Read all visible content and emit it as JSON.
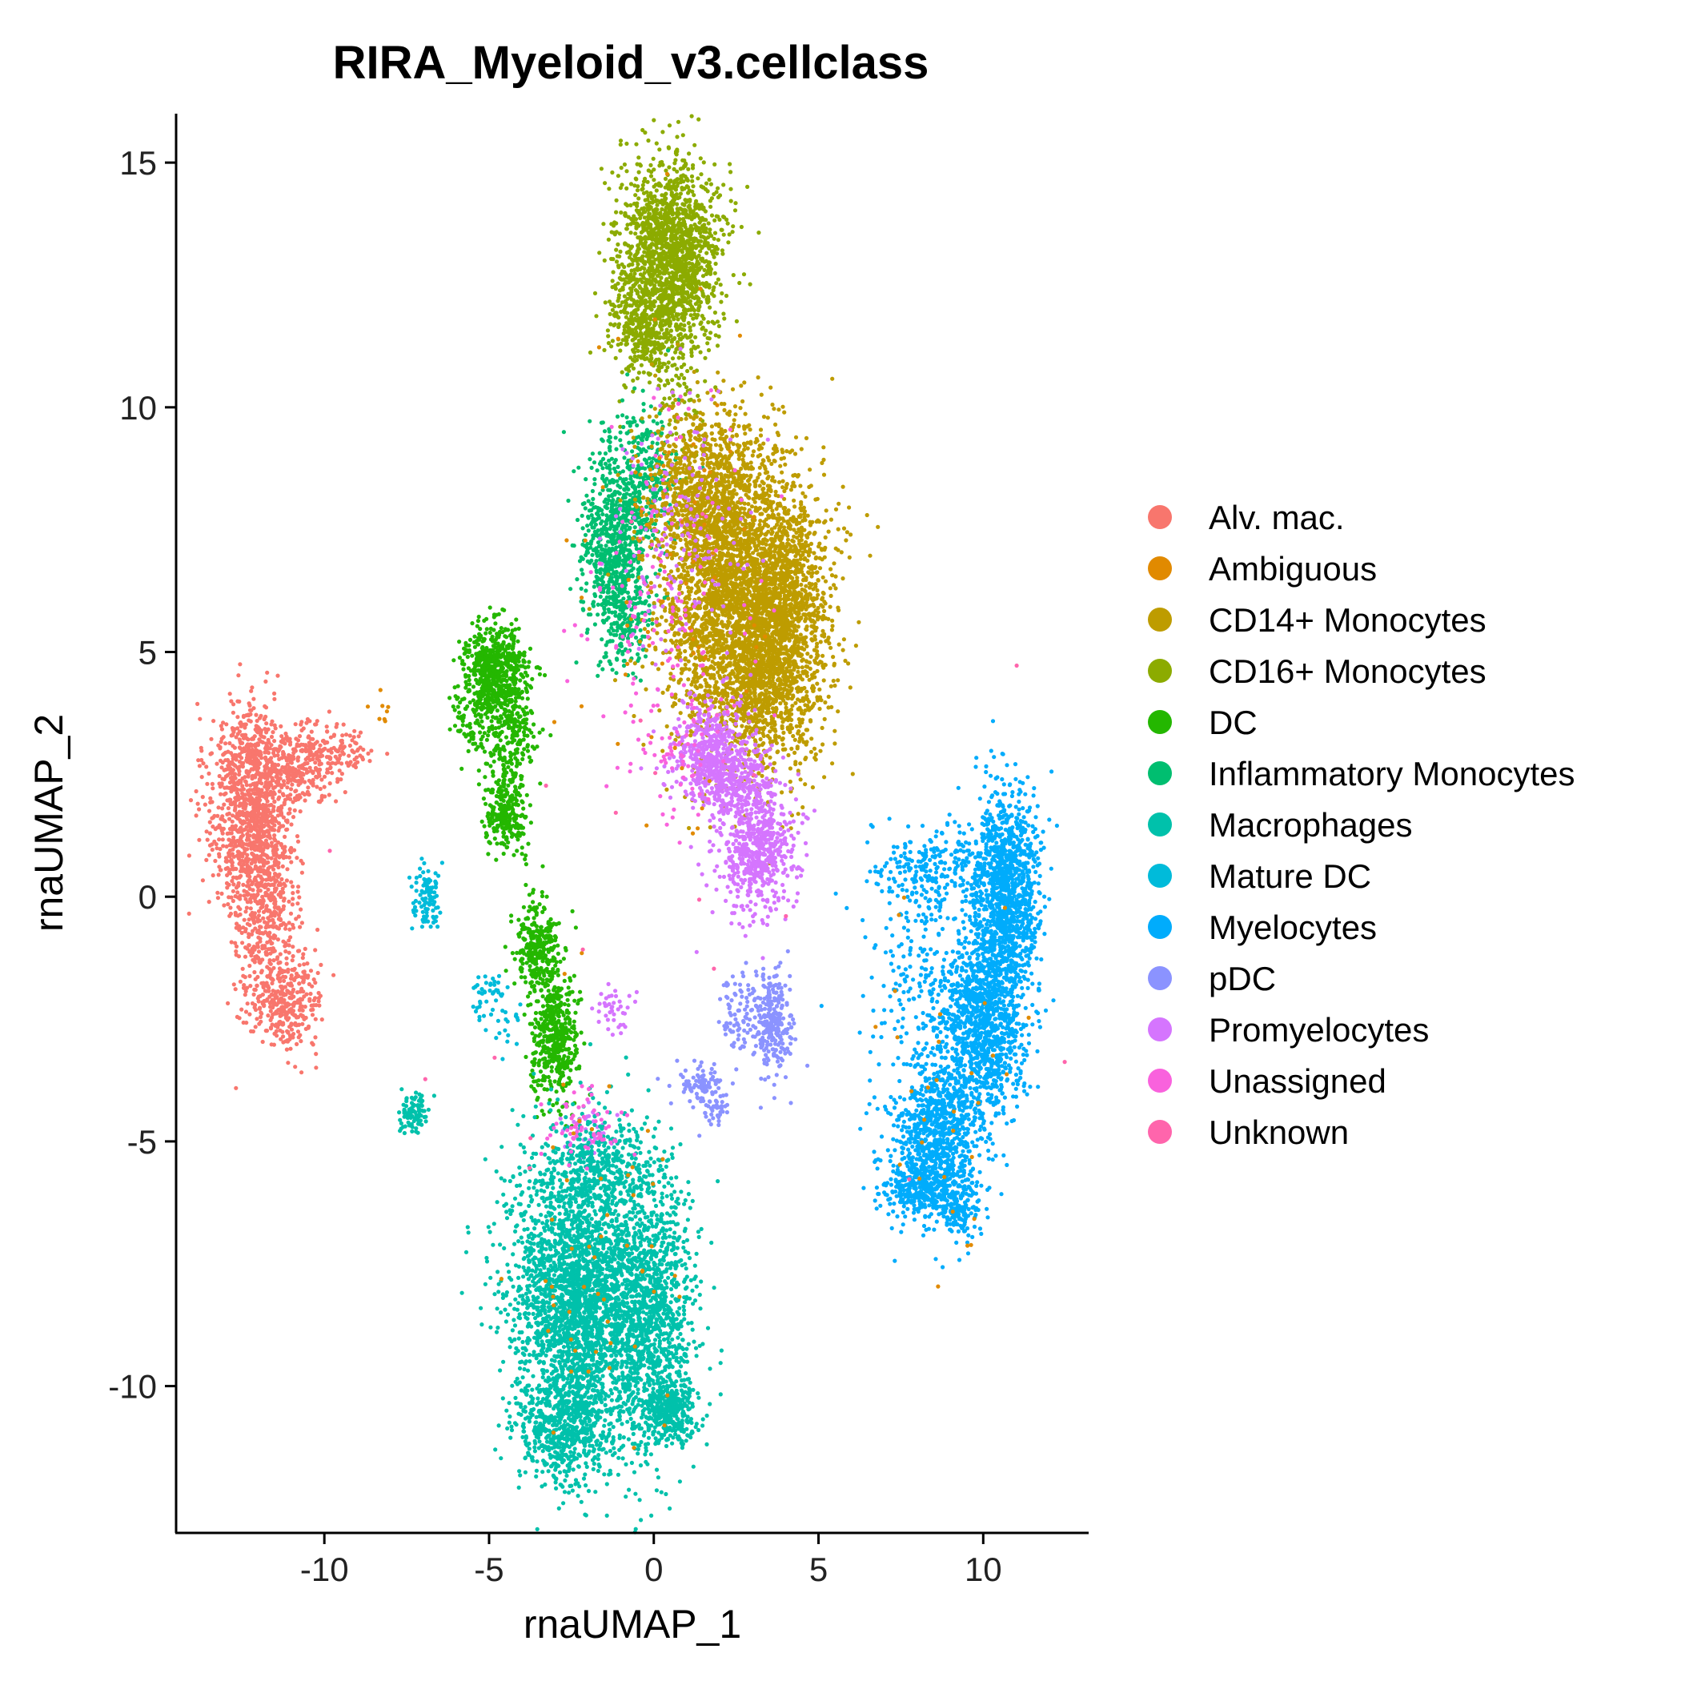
{
  "chart_data": {
    "type": "scatter",
    "title": "RIRA_Myeloid_v3.cellclass",
    "xlabel": "rnaUMAP_1",
    "ylabel": "rnaUMAP_2",
    "xlim": [
      -14.5,
      13.2
    ],
    "ylim": [
      -13,
      16
    ],
    "xticks": [
      -10,
      -5,
      0,
      5,
      10
    ],
    "xtick_labels": [
      "-10",
      "-5",
      "0",
      "5",
      "10"
    ],
    "yticks": [
      -10,
      -5,
      0,
      5,
      10,
      15
    ],
    "ytick_labels": [
      "-10",
      "-5",
      "0",
      "5",
      "10",
      "15"
    ],
    "grid": false,
    "legend_position": "right",
    "legend": [
      {
        "label": "Alv. mac.",
        "color": "#F8766D"
      },
      {
        "label": "Ambiguous",
        "color": "#E18A00"
      },
      {
        "label": "CD14+ Monocytes",
        "color": "#BE9C00"
      },
      {
        "label": "CD16+ Monocytes",
        "color": "#8CAB00"
      },
      {
        "label": "DC",
        "color": "#24B700"
      },
      {
        "label": "Inflammatory Monocytes",
        "color": "#00BE70"
      },
      {
        "label": "Macrophages",
        "color": "#00C1AB"
      },
      {
        "label": "Mature DC",
        "color": "#00BBDA"
      },
      {
        "label": "Myelocytes",
        "color": "#00ACFC"
      },
      {
        "label": "pDC",
        "color": "#8B93FF"
      },
      {
        "label": "Promyelocytes",
        "color": "#D575FE"
      },
      {
        "label": "Unassigned",
        "color": "#F962DD"
      },
      {
        "label": "Unknown",
        "color": "#FF65AC"
      }
    ],
    "series": [
      {
        "name": "Alv. mac.",
        "color": "#F8766D",
        "clusters": [
          {
            "cx": -12.3,
            "cy": 1.8,
            "sx": 0.6,
            "sy": 1.0,
            "n": 900
          },
          {
            "cx": -11.8,
            "cy": -0.2,
            "sx": 0.5,
            "sy": 1.1,
            "n": 500
          },
          {
            "cx": -11.1,
            "cy": -2.2,
            "sx": 0.5,
            "sy": 0.5,
            "n": 300
          },
          {
            "cx": -11.0,
            "cy": 2.6,
            "sx": 0.6,
            "sy": 0.4,
            "n": 250
          },
          {
            "cx": -9.8,
            "cy": 3.0,
            "sx": 0.6,
            "sy": 0.3,
            "n": 150
          },
          {
            "cx": -12.2,
            "cy": 3.1,
            "sx": 0.4,
            "sy": 0.3,
            "n": 80
          }
        ]
      },
      {
        "name": "CD16+ Monocytes",
        "color": "#8CAB00",
        "clusters": [
          {
            "cx": 0.5,
            "cy": 13.4,
            "sx": 0.75,
            "sy": 0.8,
            "n": 1300
          },
          {
            "cx": -0.2,
            "cy": 11.7,
            "sx": 0.6,
            "sy": 0.6,
            "n": 500
          },
          {
            "cx": 1.1,
            "cy": 12.2,
            "sx": 0.4,
            "sy": 0.6,
            "n": 200
          },
          {
            "cx": 0.9,
            "cy": 9.9,
            "sx": 0.4,
            "sy": 0.6,
            "n": 60
          }
        ]
      },
      {
        "name": "Inflammatory Monocytes",
        "color": "#00BE70",
        "clusters": [
          {
            "cx": -1.2,
            "cy": 7.2,
            "sx": 0.5,
            "sy": 1.0,
            "n": 700
          },
          {
            "cx": -0.3,
            "cy": 8.5,
            "sx": 0.5,
            "sy": 0.8,
            "n": 300
          },
          {
            "cx": -0.8,
            "cy": 5.6,
            "sx": 0.4,
            "sy": 0.5,
            "n": 150
          }
        ]
      },
      {
        "name": "CD14+ Monocytes",
        "color": "#BE9C00",
        "clusters": [
          {
            "cx": 2.6,
            "cy": 6.2,
            "sx": 1.2,
            "sy": 1.5,
            "n": 3200
          },
          {
            "cx": 3.6,
            "cy": 4.6,
            "sx": 0.8,
            "sy": 1.0,
            "n": 900
          },
          {
            "cx": 1.5,
            "cy": 8.4,
            "sx": 0.8,
            "sy": 0.8,
            "n": 700
          },
          {
            "cx": 4.2,
            "cy": 6.5,
            "sx": 0.5,
            "sy": 0.8,
            "n": 300
          }
        ]
      },
      {
        "name": "Promyelocytes",
        "color": "#D575FE",
        "clusters": [
          {
            "cx": 1.7,
            "cy": 2.9,
            "sx": 0.6,
            "sy": 0.5,
            "n": 450
          },
          {
            "cx": 3.1,
            "cy": 1.0,
            "sx": 0.6,
            "sy": 0.7,
            "n": 600
          },
          {
            "cx": 2.6,
            "cy": 2.3,
            "sx": 0.5,
            "sy": 0.4,
            "n": 250
          },
          {
            "cx": 0.8,
            "cy": 7.5,
            "sx": 1.0,
            "sy": 1.5,
            "n": 150
          },
          {
            "cx": -1.2,
            "cy": -2.3,
            "sx": 0.3,
            "sy": 0.3,
            "n": 40
          },
          {
            "cx": -2.0,
            "cy": -4.8,
            "sx": 0.5,
            "sy": 0.3,
            "n": 40
          }
        ]
      },
      {
        "name": "DC",
        "color": "#24B700",
        "clusters": [
          {
            "cx": -4.8,
            "cy": 4.5,
            "sx": 0.45,
            "sy": 0.5,
            "n": 700
          },
          {
            "cx": -4.3,
            "cy": 3.1,
            "sx": 0.4,
            "sy": 0.5,
            "n": 200
          },
          {
            "cx": -4.5,
            "cy": 1.7,
            "sx": 0.3,
            "sy": 0.4,
            "n": 250
          },
          {
            "cx": -3.5,
            "cy": -1.0,
            "sx": 0.35,
            "sy": 0.5,
            "n": 300
          },
          {
            "cx": -3.0,
            "cy": -2.9,
            "sx": 0.35,
            "sy": 0.6,
            "n": 450
          },
          {
            "cx": -5.5,
            "cy": 3.5,
            "sx": 0.3,
            "sy": 0.5,
            "n": 60
          }
        ]
      },
      {
        "name": "Mature DC",
        "color": "#00BBDA",
        "clusters": [
          {
            "cx": -6.9,
            "cy": 0.0,
            "sx": 0.2,
            "sy": 0.3,
            "n": 100
          },
          {
            "cx": -5.1,
            "cy": -2.1,
            "sx": 0.25,
            "sy": 0.3,
            "n": 40
          },
          {
            "cx": -4.5,
            "cy": -2.6,
            "sx": 0.2,
            "sy": 0.3,
            "n": 20
          }
        ]
      },
      {
        "name": "Macrophages",
        "color": "#00C1AB",
        "clusters": [
          {
            "cx": -2.3,
            "cy": -8.2,
            "sx": 1.0,
            "sy": 1.5,
            "n": 2600
          },
          {
            "cx": -0.1,
            "cy": -8.6,
            "sx": 0.7,
            "sy": 1.4,
            "n": 1300
          },
          {
            "cx": -2.8,
            "cy": -10.9,
            "sx": 0.7,
            "sy": 0.5,
            "n": 500
          },
          {
            "cx": 0.5,
            "cy": -10.5,
            "sx": 0.4,
            "sy": 0.3,
            "n": 250
          },
          {
            "cx": -1.5,
            "cy": -5.6,
            "sx": 0.9,
            "sy": 0.5,
            "n": 350
          },
          {
            "cx": -7.3,
            "cy": -4.4,
            "sx": 0.2,
            "sy": 0.2,
            "n": 100
          }
        ]
      },
      {
        "name": "Myelocytes",
        "color": "#00ACFC",
        "clusters": [
          {
            "cx": 10.7,
            "cy": 0.0,
            "sx": 0.5,
            "sy": 1.1,
            "n": 1200
          },
          {
            "cx": 10.0,
            "cy": -2.6,
            "sx": 0.6,
            "sy": 1.0,
            "n": 1000
          },
          {
            "cx": 8.6,
            "cy": -4.8,
            "sx": 0.7,
            "sy": 0.8,
            "n": 900
          },
          {
            "cx": 8.1,
            "cy": -6.0,
            "sx": 0.6,
            "sy": 0.3,
            "n": 300
          },
          {
            "cx": 9.3,
            "cy": -6.5,
            "sx": 0.3,
            "sy": 0.3,
            "n": 120
          },
          {
            "cx": 8.5,
            "cy": 0.6,
            "sx": 0.9,
            "sy": 0.5,
            "n": 250
          },
          {
            "cx": 8.2,
            "cy": -1.8,
            "sx": 0.8,
            "sy": 1.0,
            "n": 200
          }
        ]
      },
      {
        "name": "pDC",
        "color": "#8B93FF",
        "clusters": [
          {
            "cx": 3.6,
            "cy": -2.6,
            "sx": 0.3,
            "sy": 0.5,
            "n": 280
          },
          {
            "cx": 2.6,
            "cy": -2.4,
            "sx": 0.3,
            "sy": 0.4,
            "n": 80
          },
          {
            "cx": 1.5,
            "cy": -3.8,
            "sx": 0.4,
            "sy": 0.2,
            "n": 80
          },
          {
            "cx": 1.9,
            "cy": -4.3,
            "sx": 0.2,
            "sy": 0.2,
            "n": 40
          }
        ]
      },
      {
        "name": "Unassigned",
        "color": "#F962DD",
        "clusters": [
          {
            "cx": 0.5,
            "cy": 6.0,
            "sx": 1.2,
            "sy": 2.0,
            "n": 160
          },
          {
            "cx": -2.0,
            "cy": -4.8,
            "sx": 0.6,
            "sy": 0.4,
            "n": 60
          },
          {
            "cx": 0.6,
            "cy": 2.9,
            "sx": 0.5,
            "sy": 0.5,
            "n": 40
          }
        ]
      },
      {
        "name": "Ambiguous",
        "color": "#E18A00",
        "clusters": [
          {
            "cx": 0.5,
            "cy": 6.0,
            "sx": 1.5,
            "sy": 3.0,
            "n": 70
          },
          {
            "cx": -1.5,
            "cy": -7.5,
            "sx": 1.2,
            "sy": 2.0,
            "n": 50
          },
          {
            "cx": 9.0,
            "cy": -3.0,
            "sx": 1.0,
            "sy": 2.0,
            "n": 30
          },
          {
            "cx": -8.3,
            "cy": 3.8,
            "sx": 0.3,
            "sy": 0.2,
            "n": 8
          }
        ]
      },
      {
        "name": "Unknown",
        "color": "#FF65AC",
        "clusters": [
          {
            "cx": 0.0,
            "cy": 0.0,
            "sx": 5.0,
            "sy": 5.0,
            "n": 20
          }
        ]
      }
    ]
  }
}
